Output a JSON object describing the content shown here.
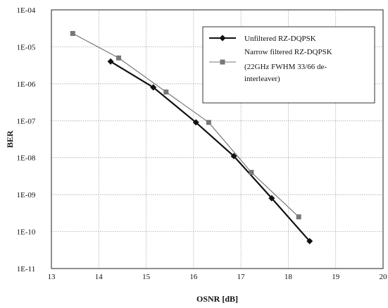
{
  "chart_data": {
    "type": "line",
    "title": "",
    "xlabel": "OSNR [dB]",
    "ylabel": "BER",
    "xlim": [
      13,
      20
    ],
    "ylim": [
      1e-11,
      0.0001
    ],
    "yscale": "log",
    "grid": true,
    "legend_position": "top-right",
    "x_ticks": [
      "13",
      "14",
      "15",
      "16",
      "17",
      "18",
      "19",
      "20"
    ],
    "y_ticks": [
      "1E-04",
      "1E-05",
      "1E-06",
      "1E-07",
      "1E-08",
      "1E-09",
      "1E-10",
      "1E-11"
    ],
    "series": [
      {
        "name": "Unfiltered RZ-DQPSK",
        "color": "#111111",
        "marker": "diamond",
        "x": [
          14.25,
          15.15,
          16.05,
          16.85,
          17.65,
          18.45
        ],
        "y": [
          4e-06,
          8e-07,
          9e-08,
          1.1e-08,
          8e-10,
          5.5e-11
        ]
      },
      {
        "name_lines": [
          "Narrow filtered  RZ-DQPSK",
          "(22GHz FWHM 33/66 de-",
          "interleaver)"
        ],
        "color": "#777777",
        "marker": "square",
        "x": [
          13.45,
          14.42,
          15.42,
          16.32,
          17.22,
          18.22
        ],
        "y": [
          2.3e-05,
          5e-06,
          6e-07,
          9e-08,
          4e-09,
          2.5e-10
        ]
      }
    ]
  }
}
